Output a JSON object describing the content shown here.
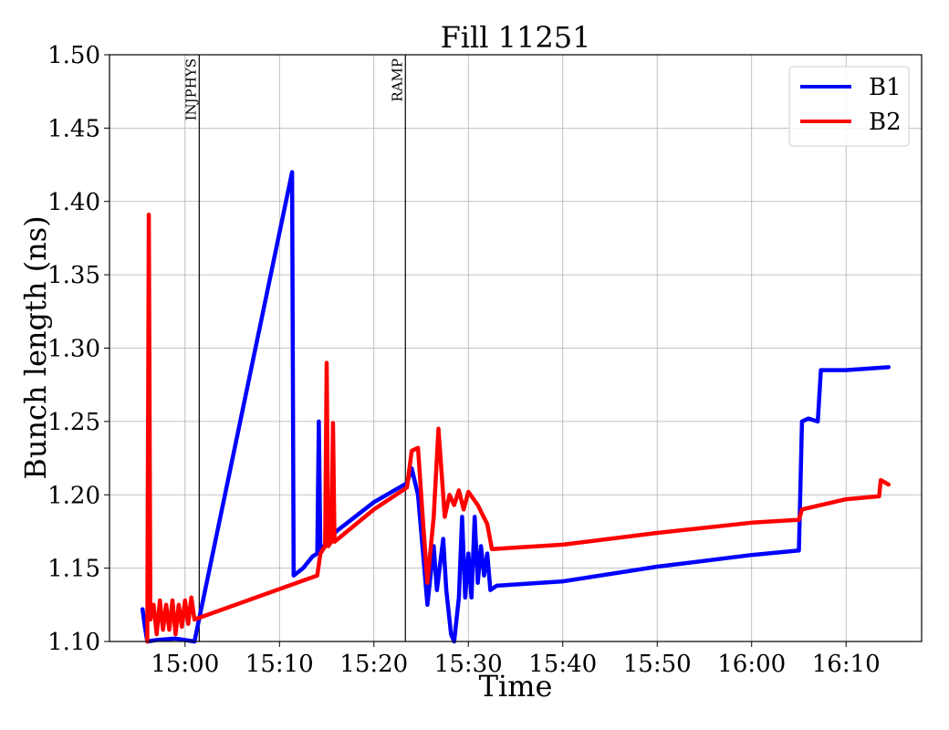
{
  "chart_data": {
    "type": "line",
    "title": "Fill 11251",
    "xlabel": "Time",
    "ylabel": "Bunch length (ns)",
    "xlim": [
      "14:52",
      "16:18"
    ],
    "ylim": [
      1.1,
      1.5
    ],
    "x_ticks": [
      "15:00",
      "15:10",
      "15:20",
      "15:30",
      "15:40",
      "15:50",
      "16:00",
      "16:10"
    ],
    "y_ticks": [
      "1.10",
      "1.15",
      "1.20",
      "1.25",
      "1.30",
      "1.35",
      "1.40",
      "1.45",
      "1.50"
    ],
    "grid": true,
    "legend_position": "top-right",
    "annotations": [
      {
        "label": "INJPHYS",
        "x": "15:01:30"
      },
      {
        "label": "RAMP",
        "x": "15:23:20"
      }
    ],
    "series": [
      {
        "name": "B1",
        "color": "#0000ff",
        "points": [
          [
            "14:55:30",
            1.122
          ],
          [
            "14:55:45",
            1.11
          ],
          [
            "14:56:00",
            1.1
          ],
          [
            "14:57:00",
            1.101
          ],
          [
            "14:59:00",
            1.102
          ],
          [
            "15:01:00",
            1.1
          ],
          [
            "15:11:20",
            1.42
          ],
          [
            "15:11:30",
            1.145
          ],
          [
            "15:12:30",
            1.15
          ],
          [
            "15:13:30",
            1.158
          ],
          [
            "15:14:00",
            1.16
          ],
          [
            "15:14:10",
            1.25
          ],
          [
            "15:14:20",
            1.162
          ],
          [
            "15:16:00",
            1.175
          ],
          [
            "15:20:00",
            1.195
          ],
          [
            "15:23:30",
            1.208
          ],
          [
            "15:24:00",
            1.218
          ],
          [
            "15:24:40",
            1.2
          ],
          [
            "15:25:20",
            1.15
          ],
          [
            "15:25:40",
            1.125
          ],
          [
            "15:26:20",
            1.165
          ],
          [
            "15:26:40",
            1.135
          ],
          [
            "15:27:20",
            1.17
          ],
          [
            "15:27:40",
            1.135
          ],
          [
            "15:28:10",
            1.105
          ],
          [
            "15:28:30",
            1.1
          ],
          [
            "15:29:00",
            1.13
          ],
          [
            "15:29:20",
            1.185
          ],
          [
            "15:29:40",
            1.13
          ],
          [
            "15:30:00",
            1.16
          ],
          [
            "15:30:20",
            1.13
          ],
          [
            "15:30:40",
            1.185
          ],
          [
            "15:31:00",
            1.14
          ],
          [
            "15:31:20",
            1.165
          ],
          [
            "15:31:40",
            1.145
          ],
          [
            "15:32:00",
            1.16
          ],
          [
            "15:32:20",
            1.135
          ],
          [
            "15:33:00",
            1.138
          ],
          [
            "15:40:00",
            1.141
          ],
          [
            "15:50:00",
            1.151
          ],
          [
            "16:00:00",
            1.159
          ],
          [
            "16:05:00",
            1.162
          ],
          [
            "16:05:20",
            1.25
          ],
          [
            "16:06:00",
            1.252
          ],
          [
            "16:07:00",
            1.25
          ],
          [
            "16:07:20",
            1.285
          ],
          [
            "16:10:00",
            1.285
          ],
          [
            "16:14:30",
            1.287
          ]
        ]
      },
      {
        "name": "B2",
        "color": "#ff0000",
        "points": [
          [
            "14:56:00",
            1.1
          ],
          [
            "14:56:10",
            1.391
          ],
          [
            "14:56:20",
            1.115
          ],
          [
            "14:56:40",
            1.125
          ],
          [
            "14:57:00",
            1.105
          ],
          [
            "14:57:20",
            1.128
          ],
          [
            "14:57:40",
            1.108
          ],
          [
            "14:58:00",
            1.125
          ],
          [
            "14:58:20",
            1.108
          ],
          [
            "14:58:40",
            1.128
          ],
          [
            "14:59:00",
            1.105
          ],
          [
            "14:59:20",
            1.125
          ],
          [
            "14:59:40",
            1.11
          ],
          [
            "15:00:00",
            1.128
          ],
          [
            "15:00:20",
            1.112
          ],
          [
            "15:00:40",
            1.13
          ],
          [
            "15:01:00",
            1.115
          ],
          [
            "15:14:00",
            1.145
          ],
          [
            "15:14:20",
            1.16
          ],
          [
            "15:14:50",
            1.165
          ],
          [
            "15:15:00",
            1.29
          ],
          [
            "15:15:10",
            1.165
          ],
          [
            "15:15:30",
            1.168
          ],
          [
            "15:15:40",
            1.249
          ],
          [
            "15:15:50",
            1.168
          ],
          [
            "15:20:00",
            1.19
          ],
          [
            "15:23:30",
            1.205
          ],
          [
            "15:24:00",
            1.23
          ],
          [
            "15:24:40",
            1.232
          ],
          [
            "15:25:10",
            1.185
          ],
          [
            "15:25:40",
            1.14
          ],
          [
            "15:26:20",
            1.185
          ],
          [
            "15:26:50",
            1.245
          ],
          [
            "15:27:30",
            1.185
          ],
          [
            "15:28:00",
            1.2
          ],
          [
            "15:28:30",
            1.193
          ],
          [
            "15:29:00",
            1.203
          ],
          [
            "15:29:30",
            1.19
          ],
          [
            "15:30:00",
            1.202
          ],
          [
            "15:31:00",
            1.193
          ],
          [
            "15:32:00",
            1.18
          ],
          [
            "15:32:30",
            1.163
          ],
          [
            "15:40:00",
            1.166
          ],
          [
            "15:50:00",
            1.174
          ],
          [
            "16:00:00",
            1.181
          ],
          [
            "16:05:00",
            1.183
          ],
          [
            "16:05:20",
            1.19
          ],
          [
            "16:10:00",
            1.197
          ],
          [
            "16:13:30",
            1.199
          ],
          [
            "16:13:40",
            1.21
          ],
          [
            "16:14:30",
            1.207
          ]
        ]
      }
    ]
  }
}
